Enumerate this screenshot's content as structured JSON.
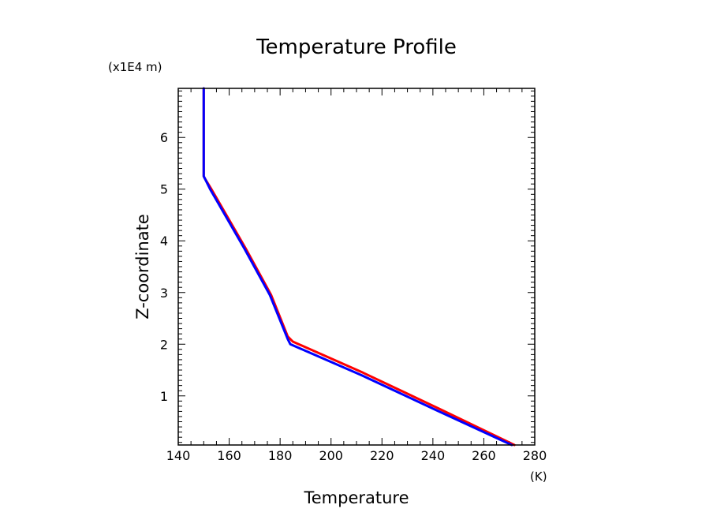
{
  "chart_data": {
    "type": "line",
    "title": "Temperature Profile",
    "xlabel": "Temperature",
    "ylabel": "Z-coordinate",
    "x_unit": "(K)",
    "y_unit": "(x1E4 m)",
    "xlim": [
      140,
      280
    ],
    "ylim": [
      0.05,
      6.95
    ],
    "x_ticks": [
      "140",
      "160",
      "180",
      "200",
      "220",
      "240",
      "260",
      "280"
    ],
    "y_ticks": [
      "1",
      "2",
      "3",
      "4",
      "5",
      "6"
    ],
    "x_tick_values": [
      140,
      160,
      180,
      200,
      220,
      240,
      260,
      280
    ],
    "y_tick_values": [
      1,
      2,
      3,
      4,
      5,
      6
    ],
    "grid": false,
    "series": [
      {
        "color": "#ff0000",
        "x": [
          272,
          242.5,
          212.5,
          185,
          183,
          176.5,
          166.5,
          153,
          150.5,
          150,
          150
        ],
        "y": [
          0.05,
          0.75,
          1.45,
          2.05,
          2.15,
          2.95,
          3.85,
          5.0,
          5.2,
          5.25,
          6.95
        ]
      },
      {
        "color": "#0000ff",
        "x": [
          271,
          241.5,
          212,
          184,
          183,
          176,
          166,
          152.5,
          150.5,
          150,
          150
        ],
        "y": [
          0.05,
          0.72,
          1.4,
          2.0,
          2.1,
          2.95,
          3.85,
          5.0,
          5.2,
          5.25,
          6.95
        ]
      }
    ]
  }
}
